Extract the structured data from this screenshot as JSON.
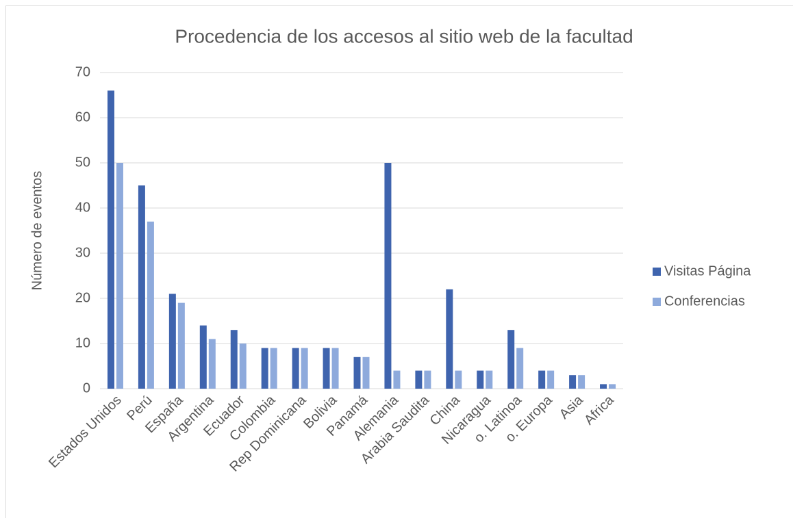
{
  "chart_data": {
    "type": "bar",
    "title": "Procedencia de los accesos al sitio web de la facultad",
    "y_label": "Número de eventos",
    "categories": [
      "Estados Unidos",
      "Perú",
      "España",
      "Argentina",
      "Ecuador",
      "Colombia",
      "Rep Dominicana",
      "Bolivia",
      "Panamá",
      "Alemania",
      "Arabia Saudita",
      "China",
      "Nicaragua",
      "o. Latinoa",
      "o. Europa",
      "Asia",
      "Africa"
    ],
    "series": [
      {
        "name": "Visitas Página",
        "color": "#3f64ae",
        "values": [
          66,
          45,
          21,
          14,
          13,
          9,
          9,
          9,
          7,
          50,
          4,
          22,
          4,
          13,
          4,
          3,
          1
        ]
      },
      {
        "name": "Conferencias",
        "color": "#8eaadc",
        "values": [
          50,
          37,
          19,
          11,
          10,
          9,
          9,
          9,
          7,
          4,
          4,
          4,
          4,
          9,
          4,
          3,
          1
        ]
      }
    ],
    "ylim": [
      0,
      70
    ],
    "yticks": [
      0,
      10,
      20,
      30,
      40,
      50,
      60,
      70
    ],
    "grid": true,
    "legend": "right"
  }
}
